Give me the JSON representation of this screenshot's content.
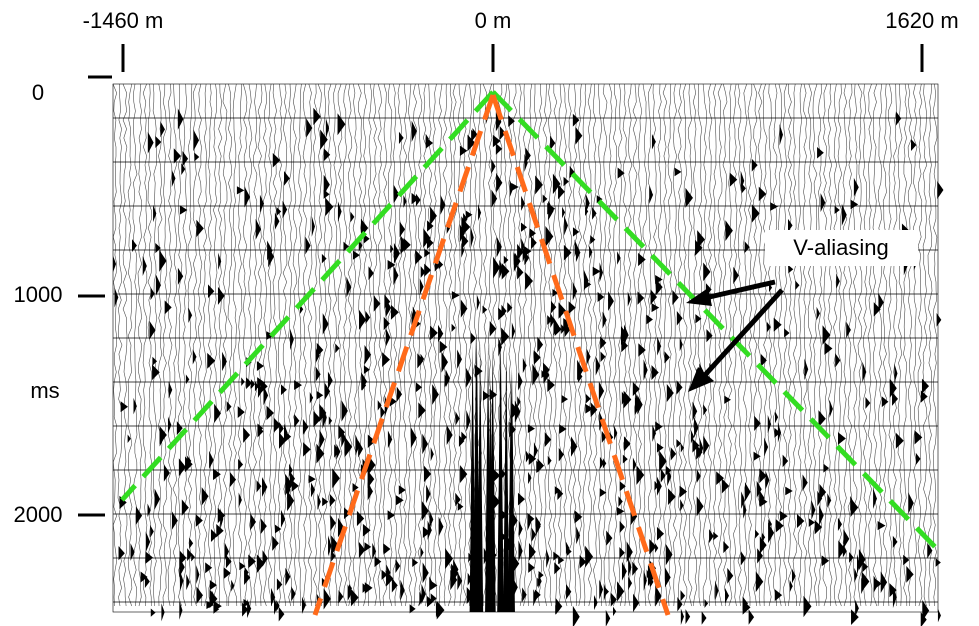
{
  "x_axis": {
    "labels": [
      "-1460 m",
      "0 m",
      "1620 m"
    ]
  },
  "y_axis": {
    "labels": [
      "0",
      "1000",
      "2000"
    ],
    "unit": "ms"
  },
  "annotation": "V-aliasing"
}
